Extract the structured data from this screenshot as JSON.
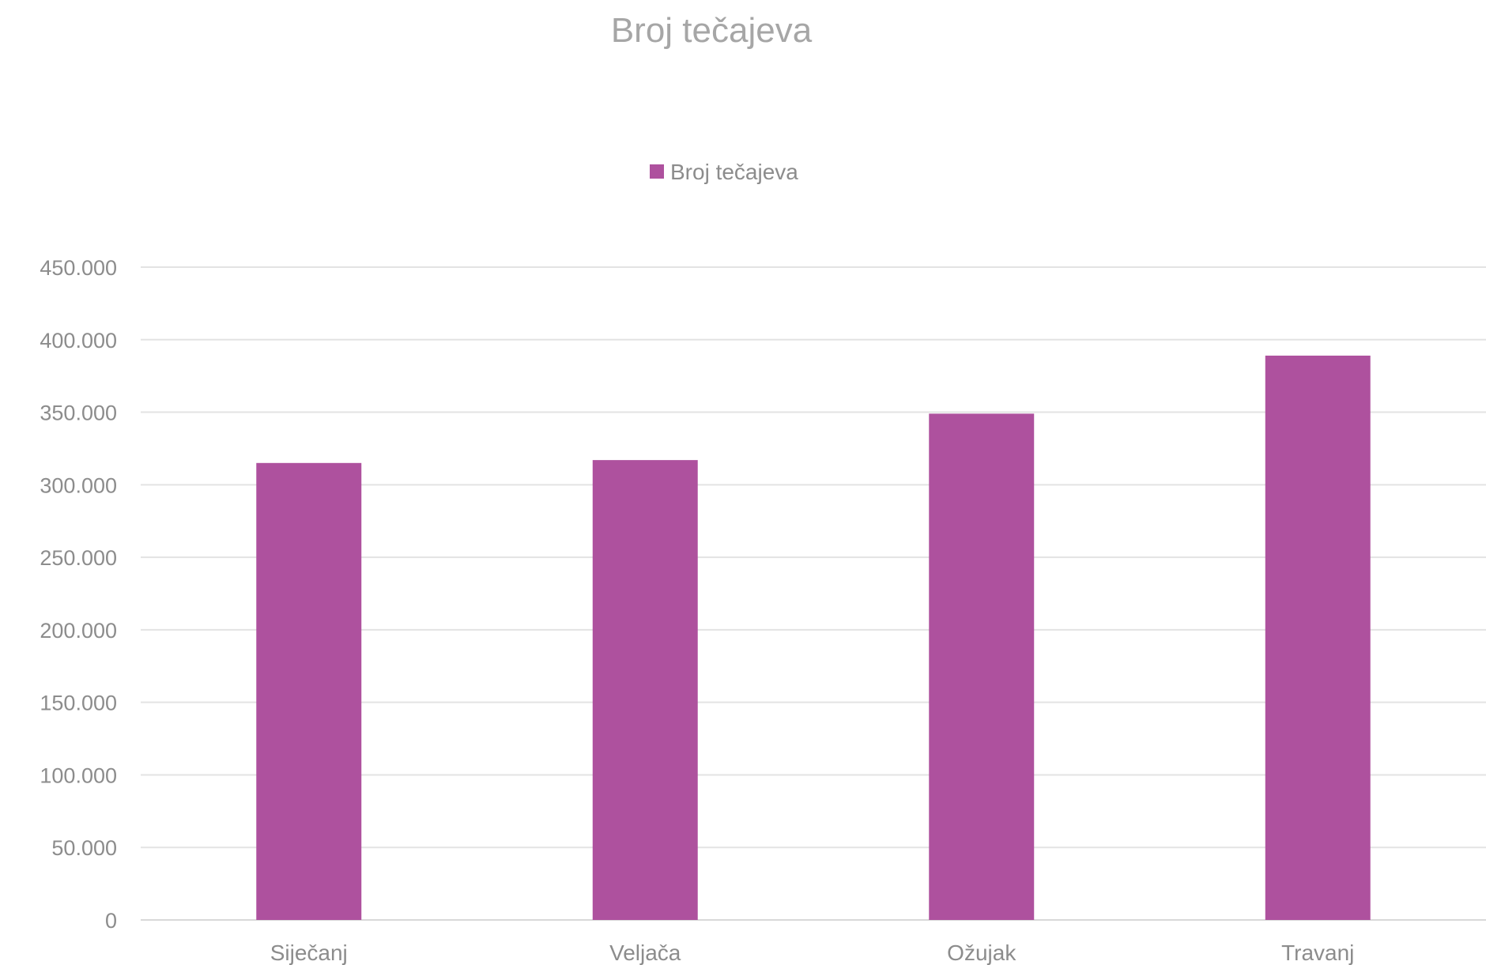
{
  "chart_data": {
    "type": "bar",
    "title": "Broj tečajeva",
    "categories": [
      "Siječanj",
      "Veljača",
      "Ožujak",
      "Travanj"
    ],
    "series": [
      {
        "name": "Broj tečajeva",
        "values": [
          315000,
          317000,
          349000,
          389000
        ],
        "color": "#ae519e"
      }
    ],
    "yticks": [
      "0",
      "50.000",
      "100.000",
      "150.000",
      "200.000",
      "250.000",
      "300.000",
      "350.000",
      "400.000",
      "450.000"
    ],
    "ylim": [
      0,
      450000
    ],
    "grid": true,
    "legend": "top-center"
  }
}
